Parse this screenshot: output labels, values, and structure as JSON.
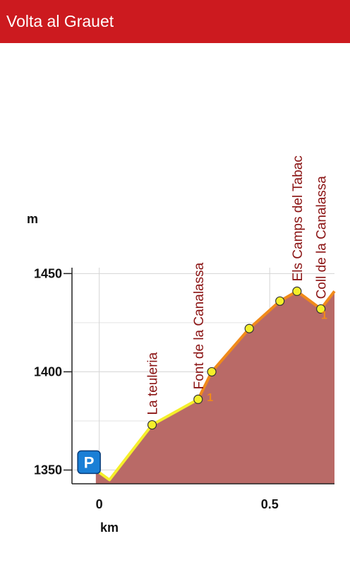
{
  "app": {
    "title": "Volta al Grauet"
  },
  "colors": {
    "appbar": "#cc1a1f",
    "area_fill": "#b96a67",
    "line_easy": "#f5ef2a",
    "line_moderate": "#f08a1a",
    "waypoint_fill": "#f5ef2a",
    "parking": "#1a7fd6"
  },
  "chart_data": {
    "type": "area",
    "xlabel": "km",
    "ylabel": "m",
    "xlim": [
      -0.08,
      0.69
    ],
    "ylim": [
      1343,
      1453
    ],
    "x_ticks": [
      0,
      0.5
    ],
    "x_tick_labels": [
      "0",
      "0.5"
    ],
    "y_ticks": [
      1350,
      1400,
      1450
    ],
    "y_tick_labels": [
      "1350",
      "1400",
      "1450"
    ],
    "grid": true,
    "profile": [
      {
        "x": -0.01,
        "y": 1350
      },
      {
        "x": 0.03,
        "y": 1345
      },
      {
        "x": 0.155,
        "y": 1373
      },
      {
        "x": 0.29,
        "y": 1386
      },
      {
        "x": 0.33,
        "y": 1400
      },
      {
        "x": 0.44,
        "y": 1422
      },
      {
        "x": 0.53,
        "y": 1436
      },
      {
        "x": 0.58,
        "y": 1441
      },
      {
        "x": 0.65,
        "y": 1432
      },
      {
        "x": 0.69,
        "y": 1441
      }
    ],
    "easy_until_x": 0.29,
    "waypoints": [
      {
        "x": 0.155,
        "y": 1373,
        "name": "La teuleria"
      },
      {
        "x": 0.29,
        "y": 1386,
        "name": "Font de la Canalassa"
      },
      {
        "x": 0.33,
        "y": 1400,
        "name": ""
      },
      {
        "x": 0.44,
        "y": 1422,
        "name": ""
      },
      {
        "x": 0.53,
        "y": 1436,
        "name": ""
      },
      {
        "x": 0.58,
        "y": 1441,
        "name": "Els Camps del Tabac"
      },
      {
        "x": 0.65,
        "y": 1432,
        "name": "Coll de la Canalassa"
      }
    ],
    "segment_markers": [
      {
        "x": 0.325,
        "y": 1385,
        "text": "1"
      },
      {
        "x": 0.66,
        "y": 1427,
        "text": "1"
      }
    ],
    "parking": {
      "x": -0.03,
      "y": 1354,
      "letter": "P"
    }
  }
}
